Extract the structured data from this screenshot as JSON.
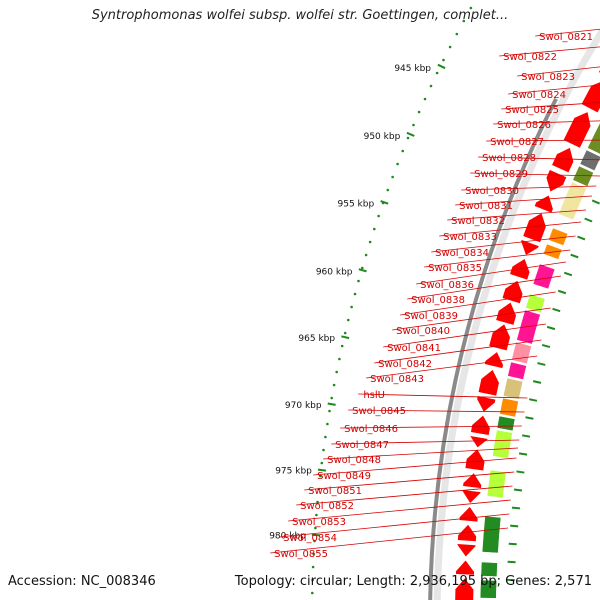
{
  "title": "Syntrophomonas wolfei subsp. wolfei str. Goettingen, complet...",
  "accession_text": "Accession: NC_008346",
  "topology_text": "Topology: circular; Length: 2,936,195 bp; Genes: 2,571",
  "kbp_ticks": [
    "945 kbp",
    "950 kbp",
    "955 kbp",
    "960 kbp",
    "965 kbp",
    "970 kbp",
    "975 kbp",
    "980 kbp"
  ],
  "gene_labels": [
    "Swol_0821",
    "Swol_0822",
    "Swol_0823",
    "Swol_0824",
    "Swol_0825",
    "Swol_0826",
    "Swol_0827",
    "Swol_0828",
    "Swol_0829",
    "Swol_0830",
    "Swol_0831",
    "Swol_0832",
    "Swol_0833",
    "Swol_0834",
    "Swol_0835",
    "Swol_0836",
    "Swol_0838",
    "Swol_0839",
    "Swol_0840",
    "Swol_0841",
    "Swol_0842",
    "Swol_0843",
    "hslU",
    "Swol_0845",
    "Swol_0846",
    "Swol_0847",
    "Swol_0848",
    "Swol_0849",
    "Swol_0851",
    "Swol_0852",
    "Swol_0853",
    "Swol_0854",
    "Swol_0855"
  ],
  "colors": {
    "backbone": "#8a8a8a",
    "gene_forward": "#ff0000",
    "label_red": "#d40000",
    "tick_green": "#1e8a1e",
    "cog_olive": "#6b8e23",
    "cog_light_olive": "#9aad3a",
    "cog_pale_yellow": "#f0e6a0",
    "cog_orange": "#ff8c00",
    "cog_magenta": "#ff1493",
    "cog_pink": "#ff8fa3",
    "cog_lime": "#b6ff3b",
    "cog_green": "#228b22",
    "cog_khaki": "#d8c27a",
    "cog_grey": "#6e6e6e",
    "cog_tan": "#d2b48c"
  }
}
